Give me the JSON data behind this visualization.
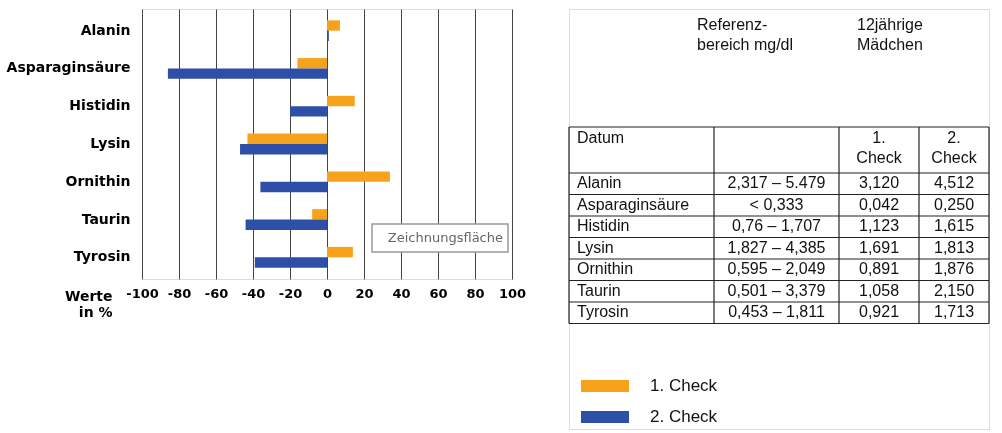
{
  "chart_data": {
    "type": "bar",
    "orientation": "horizontal",
    "categories": [
      "Alanin",
      "Asparaginsäure",
      "Histidin",
      "Lysin",
      "Ornithin",
      "Taurin",
      "Tyrosin"
    ],
    "series": [
      {
        "name": "1. Check",
        "color": "#f7a21b",
        "values": [
          7,
          -16,
          15,
          -43,
          34,
          -8,
          14
        ]
      },
      {
        "name": "2. Check",
        "color": "#2e4fa8",
        "values": [
          1,
          -86,
          -20,
          -47,
          -36,
          -44,
          -39
        ]
      }
    ],
    "xlabel": "Werte\nin %",
    "xlim": [
      -100,
      100
    ],
    "xticks": [
      -100,
      -80,
      -60,
      -40,
      -20,
      0,
      20,
      40,
      60,
      80,
      100
    ],
    "grid": "x",
    "legend": "bottom right",
    "annotations": [
      "Zeichnungsfläche",
      "Referenz-\nbereich mg/dl",
      "12jährige\nMädchen",
      "Datum",
      "1.\nCheck",
      "2.\nCheck",
      "Alanin",
      "2,317 – 5.479",
      "3,120",
      "4,512",
      "Asparaginsäure",
      "< 0,333",
      "0,042",
      "0,250",
      "Histidin",
      "0,76 – 1,707",
      "1,123",
      "1,615",
      "Lysin",
      "1,827 – 4,385",
      "1,691",
      "1,813",
      "Ornithin",
      "0,595 – 2,049",
      "0,891",
      "1,876",
      "Taurin",
      "0,501 – 3,379",
      "1,058",
      "2,150",
      "Tyrosin",
      "0,453 – 1,811",
      "0,921",
      "1,713"
    ]
  }
}
